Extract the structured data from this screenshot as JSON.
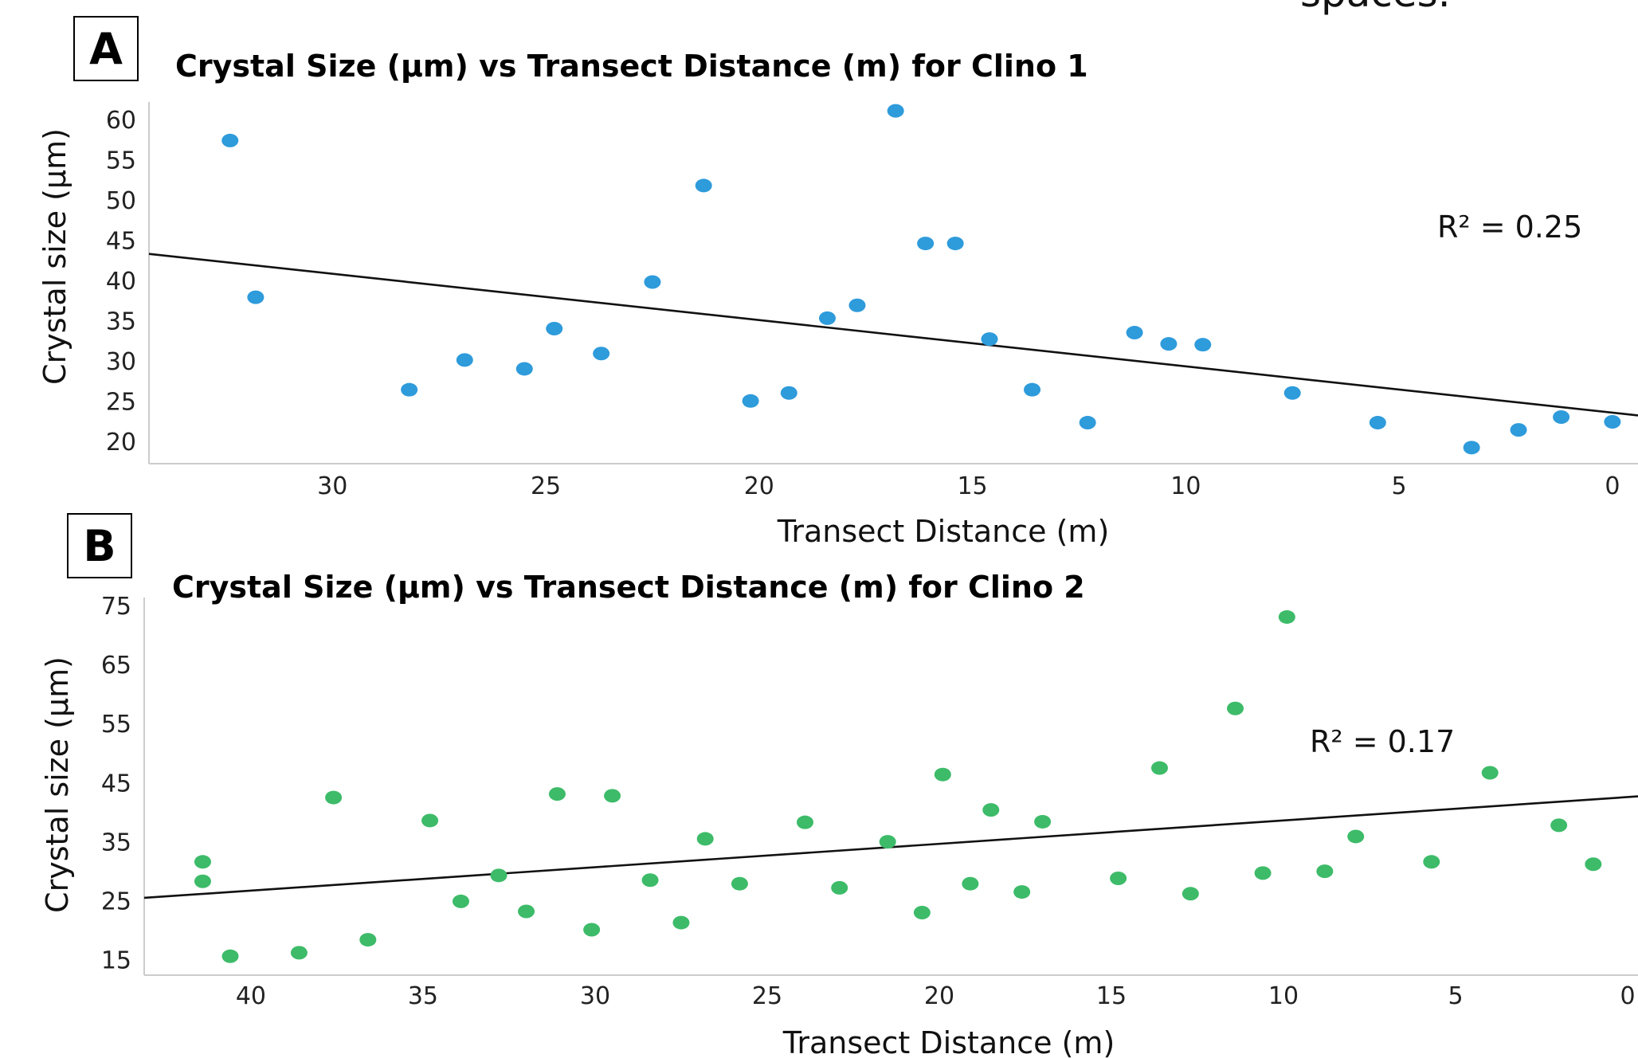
{
  "page": {
    "stray_text": "spaces."
  },
  "chart_data": [
    {
      "panel_label": "A",
      "type": "scatter",
      "title": "Crystal Size (µm) vs Transect Distance (m) for Clino 1",
      "xlabel": "Transect Distance (m)",
      "ylabel": "Crystal size (µm)",
      "xlim": [
        34.3,
        -0.6
      ],
      "ylim": [
        17.3,
        62.3
      ],
      "xticks": [
        30,
        25,
        20,
        15,
        10,
        5,
        0
      ],
      "yticks": [
        20,
        25,
        30,
        35,
        40,
        45,
        50,
        55,
        60
      ],
      "color": "#2E9BDB",
      "grid": false,
      "r_squared_text": "R² = 0.25",
      "trendline": {
        "x": [
          34.3,
          -0.6
        ],
        "y": [
          43.4,
          23.3
        ]
      },
      "series": [
        {
          "x": [
            32.4,
            31.8,
            28.2,
            26.9,
            25.5,
            24.8,
            23.7,
            22.5,
            21.3,
            20.2,
            19.3,
            18.4,
            17.7,
            16.8,
            16.1,
            15.4,
            14.6,
            13.6,
            12.3,
            11.2,
            10.4,
            9.6,
            7.5,
            5.5,
            3.3,
            2.2,
            1.2,
            0.0
          ],
          "y": [
            57.5,
            38.0,
            26.5,
            30.2,
            29.1,
            34.1,
            31.0,
            39.9,
            51.9,
            25.1,
            26.1,
            35.4,
            37.0,
            61.2,
            44.7,
            44.7,
            32.8,
            26.5,
            22.4,
            33.6,
            32.2,
            32.1,
            26.1,
            22.4,
            19.3,
            21.5,
            23.1,
            22.5
          ]
        }
      ]
    },
    {
      "panel_label": "B",
      "type": "scatter",
      "title": "Crystal Size (µm) vs Transect Distance (m) for Clino 2",
      "xlabel": "Transect Distance (m)",
      "ylabel": "Crystal size (µm)",
      "xlim": [
        43.1,
        -0.3
      ],
      "ylim": [
        12.5,
        76.5
      ],
      "xticks": [
        40,
        35,
        30,
        25,
        20,
        15,
        10,
        5,
        0
      ],
      "yticks": [
        15,
        25,
        35,
        45,
        55,
        65,
        75
      ],
      "color": "#3DBB69",
      "grid": false,
      "r_squared_text": "R² = 0.17",
      "trendline": {
        "x": [
          43.1,
          -0.3
        ],
        "y": [
          25.6,
          42.8
        ]
      },
      "series": [
        {
          "x": [
            41.4,
            41.4,
            40.6,
            38.6,
            37.6,
            36.6,
            34.8,
            33.9,
            32.8,
            32.0,
            31.1,
            30.1,
            29.5,
            28.4,
            27.5,
            26.8,
            25.8,
            23.9,
            22.9,
            21.5,
            20.5,
            19.9,
            19.1,
            18.5,
            17.6,
            17.0,
            14.8,
            13.6,
            12.7,
            11.4,
            10.6,
            9.9,
            8.8,
            7.9,
            5.7,
            4.0,
            2.0,
            1.0
          ],
          "y": [
            31.7,
            28.4,
            15.7,
            16.3,
            42.6,
            18.5,
            38.7,
            25.0,
            29.4,
            23.3,
            43.2,
            20.2,
            42.9,
            28.6,
            21.4,
            35.6,
            28.0,
            38.4,
            27.3,
            35.1,
            23.1,
            46.5,
            28.0,
            40.5,
            26.6,
            38.5,
            28.9,
            47.6,
            26.3,
            57.7,
            29.8,
            73.2,
            30.1,
            36.0,
            31.7,
            46.8,
            37.9,
            31.3
          ]
        }
      ]
    }
  ]
}
